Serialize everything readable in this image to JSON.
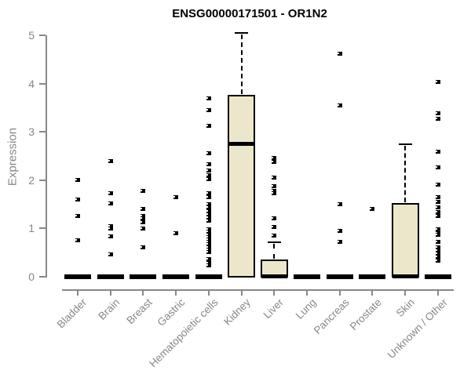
{
  "chart_data": {
    "type": "boxplot",
    "title": "ENSG00000171501 - OR1N2",
    "ylabel": "Expression",
    "ylim": [
      0,
      5
    ],
    "yticks": [
      0,
      1,
      2,
      3,
      4,
      5
    ],
    "grid": false,
    "legend": "none",
    "box_fill_color": "#ECE6CB",
    "box_border_color": "#000000",
    "axis_color": "#878787",
    "title_color": "#000000",
    "categories": [
      "Bladder",
      "Brain",
      "Breast",
      "Gastric",
      "Hematopoietic cells",
      "Kidney",
      "Liver",
      "Lung",
      "Pancreas",
      "Prostate",
      "Skin",
      "Unknown / Other"
    ],
    "boxes": [
      {
        "category": "Bladder",
        "q1": 0,
        "median": 0,
        "q3": 0,
        "whisker_low": 0,
        "whisker_high": 0,
        "outliers": [
          2.0,
          1.6,
          1.25,
          0.75
        ]
      },
      {
        "category": "Brain",
        "q1": 0,
        "median": 0,
        "q3": 0,
        "whisker_low": 0,
        "whisker_high": 0,
        "outliers": [
          2.4,
          1.72,
          1.52,
          1.04,
          0.99,
          0.83,
          0.45
        ]
      },
      {
        "category": "Breast",
        "q1": 0,
        "median": 0,
        "q3": 0,
        "whisker_low": 0,
        "whisker_high": 0,
        "outliers": [
          1.78,
          1.4,
          1.26,
          1.2,
          1.13,
          0.99,
          0.61
        ]
      },
      {
        "category": "Gastric",
        "q1": 0,
        "median": 0,
        "q3": 0,
        "whisker_low": 0,
        "whisker_high": 0,
        "outliers": [
          1.65,
          0.9
        ]
      },
      {
        "category": "Hematopoietic cells",
        "q1": 0,
        "median": 0,
        "q3": 0,
        "whisker_low": 0,
        "whisker_high": 0,
        "outliers": [
          3.7,
          3.45,
          3.12,
          2.55,
          2.32,
          2.2,
          2.1,
          2.02,
          1.72,
          1.64,
          1.5,
          1.43,
          1.35,
          1.28,
          1.22,
          1.15,
          0.98,
          0.92,
          0.87,
          0.82,
          0.77,
          0.72,
          0.66,
          0.6,
          0.55,
          0.5,
          0.35,
          0.28,
          0.22
        ]
      },
      {
        "category": "Kidney",
        "q1": 0,
        "median": 2.75,
        "q3": 3.75,
        "whisker_low": 0,
        "whisker_high": 5.05,
        "outliers": []
      },
      {
        "category": "Liver",
        "q1": 0,
        "median": 0,
        "q3": 0.33,
        "whisker_low": 0,
        "whisker_high": 0.7,
        "outliers": [
          2.45,
          2.38,
          2.05,
          1.87,
          1.78,
          1.72,
          1.21,
          1.03,
          0.84
        ]
      },
      {
        "category": "Lung",
        "q1": 0,
        "median": 0,
        "q3": 0,
        "whisker_low": 0,
        "whisker_high": 0,
        "outliers": []
      },
      {
        "category": "Pancreas",
        "q1": 0,
        "median": 0,
        "q3": 0,
        "whisker_low": 0,
        "whisker_high": 0,
        "outliers": [
          4.62,
          3.55,
          1.5,
          0.95,
          0.72
        ]
      },
      {
        "category": "Prostate",
        "q1": 0,
        "median": 0,
        "q3": 0,
        "whisker_low": 0,
        "whisker_high": 0,
        "outliers": [
          1.4
        ]
      },
      {
        "category": "Skin",
        "q1": 0,
        "median": 0,
        "q3": 1.5,
        "whisker_low": 0,
        "whisker_high": 2.75,
        "outliers": []
      },
      {
        "category": "Unknown / Other",
        "q1": 0,
        "median": 0,
        "q3": 0,
        "whisker_low": 0,
        "whisker_high": 0,
        "outliers": [
          4.03,
          3.38,
          3.28,
          2.59,
          2.27,
          1.91,
          1.64,
          1.54,
          1.43,
          1.33,
          1.26,
          0.97,
          0.9,
          0.86,
          0.72,
          0.61,
          0.53,
          0.48,
          0.4,
          0.32
        ]
      }
    ]
  }
}
